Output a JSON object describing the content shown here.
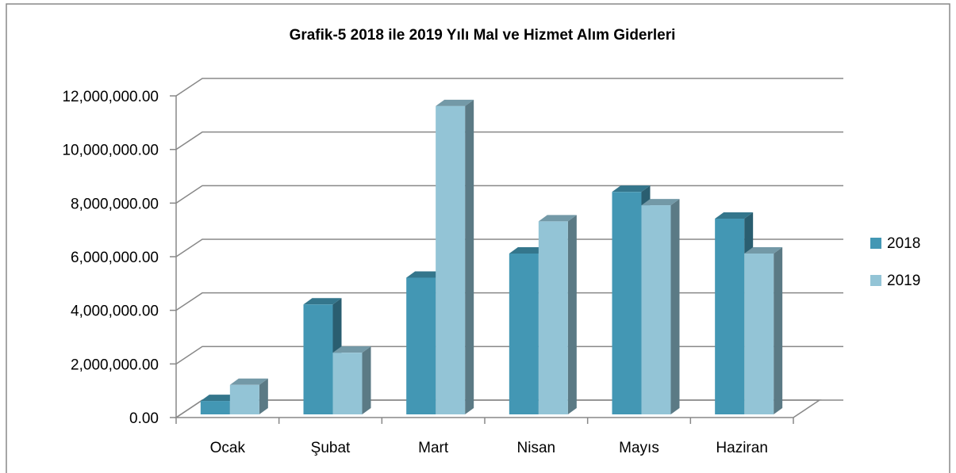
{
  "chart_data": {
    "type": "bar3d",
    "title": "Grafik-5 2018 ile 2019 Yılı Mal ve Hizmet Alım Giderleri",
    "categories": [
      "Ocak",
      "Şubat",
      "Mart",
      "Nisan",
      "Mayıs",
      "Haziran"
    ],
    "series": [
      {
        "name": "2018",
        "color": "#4397b4",
        "values": [
          500000,
          4100000,
          5100000,
          6000000,
          8300000,
          7300000
        ]
      },
      {
        "name": "2019",
        "color": "#93c4d6",
        "values": [
          1100000,
          2300000,
          11500000,
          7200000,
          7800000,
          6000000
        ]
      }
    ],
    "ylim": [
      0,
      12000000
    ],
    "yticks": [
      {
        "value": 0,
        "label": "0.00"
      },
      {
        "value": 2000000,
        "label": "2,000,000.00"
      },
      {
        "value": 4000000,
        "label": "4,000,000.00"
      },
      {
        "value": 6000000,
        "label": "6,000,000.00"
      },
      {
        "value": 8000000,
        "label": "8,000,000.00"
      },
      {
        "value": 10000000,
        "label": "10,000,000.00"
      },
      {
        "value": 12000000,
        "label": "12,000,000.00"
      }
    ],
    "grid": true,
    "legend": "right"
  }
}
